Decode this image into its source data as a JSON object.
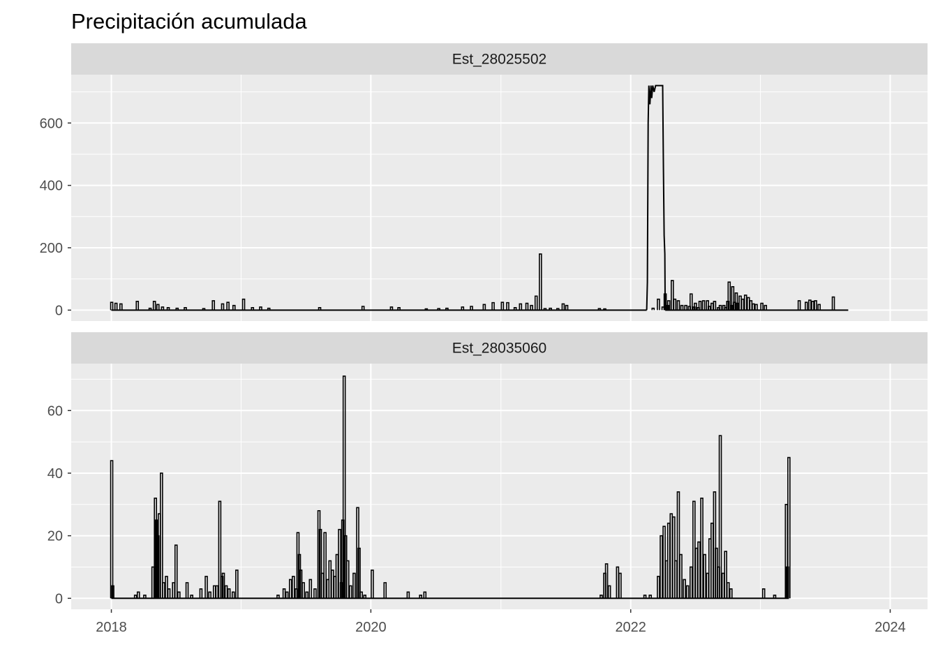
{
  "chart_data": {
    "type": "line",
    "title": "Precipitación acumulada",
    "xlabel": "",
    "ylabel": "",
    "x_type": "date",
    "xlim": [
      "2017-09-10",
      "2024-04-15"
    ],
    "x_ticks": [
      "2018",
      "2020",
      "2022",
      "2024"
    ],
    "grid": true,
    "legend": "none",
    "colors": {
      "panel": "#ebebeb",
      "strip": "#d9d9d9",
      "grid": "#ffffff",
      "line": "#000000",
      "tick_label": "#4d4d4d"
    },
    "facets": [
      {
        "strip": "Est_28025502",
        "ylim": [
          -35,
          755
        ],
        "y_ticks": [
          0,
          200,
          400,
          600
        ],
        "spikes": [
          [
            "2018-01-02",
            25
          ],
          [
            "2018-01-14",
            22
          ],
          [
            "2018-01-28",
            20
          ],
          [
            "2018-03-15",
            28
          ],
          [
            "2018-04-20",
            6
          ],
          [
            "2018-05-02",
            28
          ],
          [
            "2018-05-12",
            18
          ],
          [
            "2018-05-25",
            10
          ],
          [
            "2018-06-10",
            8
          ],
          [
            "2018-07-05",
            6
          ],
          [
            "2018-07-28",
            8
          ],
          [
            "2018-09-18",
            5
          ],
          [
            "2018-10-15",
            30
          ],
          [
            "2018-11-10",
            20
          ],
          [
            "2018-11-25",
            25
          ],
          [
            "2018-12-12",
            15
          ],
          [
            "2019-01-08",
            35
          ],
          [
            "2019-02-02",
            8
          ],
          [
            "2019-02-25",
            10
          ],
          [
            "2019-03-20",
            6
          ],
          [
            "2019-08-10",
            8
          ],
          [
            "2019-12-10",
            12
          ],
          [
            "2020-02-28",
            10
          ],
          [
            "2020-03-20",
            8
          ],
          [
            "2020-06-05",
            4
          ],
          [
            "2020-07-10",
            5
          ],
          [
            "2020-08-02",
            6
          ],
          [
            "2020-09-15",
            10
          ],
          [
            "2020-10-10",
            12
          ],
          [
            "2020-11-15",
            18
          ],
          [
            "2020-12-10",
            24
          ],
          [
            "2021-01-05",
            25
          ],
          [
            "2021-01-20",
            24
          ],
          [
            "2021-02-10",
            8
          ],
          [
            "2021-02-25",
            20
          ],
          [
            "2021-03-15",
            22
          ],
          [
            "2021-03-28",
            15
          ],
          [
            "2021-04-10",
            45
          ],
          [
            "2021-04-22",
            180
          ],
          [
            "2021-05-05",
            5
          ],
          [
            "2021-05-20",
            6
          ],
          [
            "2021-06-10",
            5
          ],
          [
            "2021-06-25",
            20
          ],
          [
            "2021-07-05",
            15
          ],
          [
            "2021-10-05",
            5
          ],
          [
            "2021-10-20",
            4
          ],
          [
            "2022-03-05",
            6
          ],
          [
            "2022-03-20",
            35
          ],
          [
            "2022-04-02",
            10
          ],
          [
            "2022-04-15",
            15
          ],
          [
            "2022-04-28",
            95
          ],
          [
            "2022-05-05",
            35
          ],
          [
            "2022-05-15",
            30
          ],
          [
            "2022-06-05",
            15
          ],
          [
            "2022-06-15",
            12
          ],
          [
            "2022-06-28",
            10
          ],
          [
            "2022-07-10",
            8
          ],
          [
            "2022-07-25",
            30
          ],
          [
            "2022-08-10",
            12
          ],
          [
            "2022-08-25",
            28
          ],
          [
            "2022-09-10",
            15
          ],
          [
            "2022-09-25",
            8
          ],
          [
            "2022-10-05",
            90
          ],
          [
            "2022-10-15",
            75
          ],
          [
            "2022-10-25",
            55
          ],
          [
            "2022-04-08",
            52
          ],
          [
            "2022-04-18",
            30
          ],
          [
            "2022-05-25",
            15
          ],
          [
            "2022-06-20",
            52
          ],
          [
            "2022-07-02",
            22
          ],
          [
            "2022-07-15",
            28
          ],
          [
            "2022-08-05",
            30
          ],
          [
            "2022-08-18",
            22
          ],
          [
            "2022-09-05",
            8
          ],
          [
            "2022-09-20",
            15
          ],
          [
            "2022-10-01",
            28
          ],
          [
            "2022-10-12",
            15
          ],
          [
            "2022-10-20",
            25
          ],
          [
            "2022-10-28",
            22
          ],
          [
            "2022-11-05",
            45
          ],
          [
            "2022-11-12",
            35
          ],
          [
            "2022-11-20",
            48
          ],
          [
            "2022-11-28",
            40
          ],
          [
            "2022-12-05",
            30
          ],
          [
            "2022-12-12",
            20
          ],
          [
            "2022-12-20",
            18
          ],
          [
            "2023-01-05",
            22
          ],
          [
            "2023-01-15",
            15
          ],
          [
            "2023-04-20",
            30
          ],
          [
            "2023-05-10",
            25
          ],
          [
            "2023-05-20",
            32
          ],
          [
            "2023-05-28",
            28
          ],
          [
            "2023-06-05",
            30
          ],
          [
            "2023-06-15",
            18
          ],
          [
            "2023-07-25",
            42
          ]
        ],
        "plateau": {
          "start": "2022-02-15",
          "end": "2022-04-08",
          "max": 720,
          "samples": [
            [
              "2022-02-15",
              0
            ],
            [
              "2022-02-17",
              90
            ],
            [
              "2022-02-19",
              600
            ],
            [
              "2022-02-21",
              720
            ],
            [
              "2022-02-24",
              660
            ],
            [
              "2022-02-27",
              720
            ],
            [
              "2022-03-01",
              680
            ],
            [
              "2022-03-04",
              720
            ],
            [
              "2022-03-08",
              700
            ],
            [
              "2022-03-12",
              720
            ],
            [
              "2022-03-18",
              720
            ],
            [
              "2022-03-25",
              720
            ],
            [
              "2022-04-01",
              720
            ],
            [
              "2022-04-03",
              450
            ],
            [
              "2022-04-05",
              240
            ],
            [
              "2022-04-07",
              180
            ],
            [
              "2022-04-08",
              0
            ]
          ]
        },
        "series_end": "2023-09-05"
      },
      {
        "strip": "Est_28035060",
        "ylim": [
          -3.5,
          75
        ],
        "y_ticks": [
          0,
          20,
          40,
          60
        ],
        "spikes": [
          [
            "2018-01-02",
            44
          ],
          [
            "2018-01-05",
            4
          ],
          [
            "2018-03-10",
            1
          ],
          [
            "2018-03-18",
            2
          ],
          [
            "2018-04-05",
            1
          ],
          [
            "2018-04-28",
            10
          ],
          [
            "2018-05-05",
            32
          ],
          [
            "2018-05-08",
            25
          ],
          [
            "2018-05-12",
            20
          ],
          [
            "2018-05-16",
            27
          ],
          [
            "2018-05-22",
            40
          ],
          [
            "2018-05-28",
            5
          ],
          [
            "2018-06-05",
            7
          ],
          [
            "2018-06-12",
            3
          ],
          [
            "2018-06-25",
            5
          ],
          [
            "2018-07-02",
            17
          ],
          [
            "2018-07-10",
            2
          ],
          [
            "2018-08-02",
            5
          ],
          [
            "2018-08-15",
            1
          ],
          [
            "2018-09-10",
            3
          ],
          [
            "2018-09-25",
            7
          ],
          [
            "2018-10-05",
            2
          ],
          [
            "2018-10-18",
            4
          ],
          [
            "2018-10-25",
            4
          ],
          [
            "2018-11-02",
            31
          ],
          [
            "2018-11-08",
            7
          ],
          [
            "2018-11-12",
            8
          ],
          [
            "2018-11-20",
            4
          ],
          [
            "2018-11-28",
            3
          ],
          [
            "2018-12-10",
            2
          ],
          [
            "2018-12-20",
            9
          ],
          [
            "2019-04-15",
            1
          ],
          [
            "2019-05-02",
            3
          ],
          [
            "2019-05-10",
            2
          ],
          [
            "2019-05-20",
            6
          ],
          [
            "2019-05-28",
            7
          ],
          [
            "2019-06-05",
            3
          ],
          [
            "2019-06-10",
            21
          ],
          [
            "2019-06-14",
            14
          ],
          [
            "2019-06-18",
            9
          ],
          [
            "2019-06-25",
            5
          ],
          [
            "2019-07-05",
            2
          ],
          [
            "2019-07-15",
            6
          ],
          [
            "2019-07-28",
            3
          ],
          [
            "2019-08-08",
            28
          ],
          [
            "2019-08-12",
            22
          ],
          [
            "2019-08-18",
            8
          ],
          [
            "2019-08-25",
            21
          ],
          [
            "2019-09-02",
            6
          ],
          [
            "2019-09-08",
            12
          ],
          [
            "2019-09-15",
            9
          ],
          [
            "2019-09-22",
            7
          ],
          [
            "2019-09-28",
            14
          ],
          [
            "2019-10-05",
            22
          ],
          [
            "2019-10-10",
            5
          ],
          [
            "2019-10-14",
            25
          ],
          [
            "2019-10-18",
            71
          ],
          [
            "2019-10-22",
            20
          ],
          [
            "2019-10-28",
            12
          ],
          [
            "2019-11-05",
            4
          ],
          [
            "2019-11-15",
            8
          ],
          [
            "2019-11-25",
            29
          ],
          [
            "2019-11-29",
            16
          ],
          [
            "2019-12-05",
            2
          ],
          [
            "2019-12-15",
            1
          ],
          [
            "2020-01-05",
            9
          ],
          [
            "2020-02-10",
            5
          ],
          [
            "2020-04-15",
            2
          ],
          [
            "2020-05-20",
            1
          ],
          [
            "2020-06-01",
            2
          ],
          [
            "2021-10-10",
            1
          ],
          [
            "2021-10-20",
            8
          ],
          [
            "2021-10-25",
            11
          ],
          [
            "2021-11-02",
            4
          ],
          [
            "2021-11-25",
            10
          ],
          [
            "2021-12-02",
            8
          ],
          [
            "2022-02-10",
            1
          ],
          [
            "2022-02-25",
            1
          ],
          [
            "2022-03-20",
            7
          ],
          [
            "2022-03-28",
            20
          ],
          [
            "2022-04-05",
            23
          ],
          [
            "2022-04-12",
            12
          ],
          [
            "2022-04-18",
            24
          ],
          [
            "2022-04-25",
            27
          ],
          [
            "2022-05-02",
            26
          ],
          [
            "2022-05-08",
            12
          ],
          [
            "2022-05-15",
            34
          ],
          [
            "2022-05-22",
            14
          ],
          [
            "2022-06-01",
            6
          ],
          [
            "2022-06-10",
            4
          ],
          [
            "2022-06-20",
            10
          ],
          [
            "2022-06-28",
            31
          ],
          [
            "2022-07-05",
            16
          ],
          [
            "2022-07-12",
            18
          ],
          [
            "2022-07-20",
            32
          ],
          [
            "2022-07-28",
            14
          ],
          [
            "2022-08-05",
            8
          ],
          [
            "2022-08-12",
            19
          ],
          [
            "2022-08-18",
            24
          ],
          [
            "2022-08-25",
            34
          ],
          [
            "2022-08-30",
            16
          ],
          [
            "2022-09-05",
            10
          ],
          [
            "2022-09-10",
            52
          ],
          [
            "2022-09-18",
            8
          ],
          [
            "2022-09-25",
            15
          ],
          [
            "2022-10-02",
            5
          ],
          [
            "2022-10-10",
            3
          ],
          [
            "2023-01-10",
            3
          ],
          [
            "2023-02-10",
            1
          ],
          [
            "2023-03-15",
            30
          ],
          [
            "2023-03-18",
            10
          ],
          [
            "2023-03-22",
            45
          ]
        ],
        "series_end": "2023-03-22"
      }
    ]
  }
}
